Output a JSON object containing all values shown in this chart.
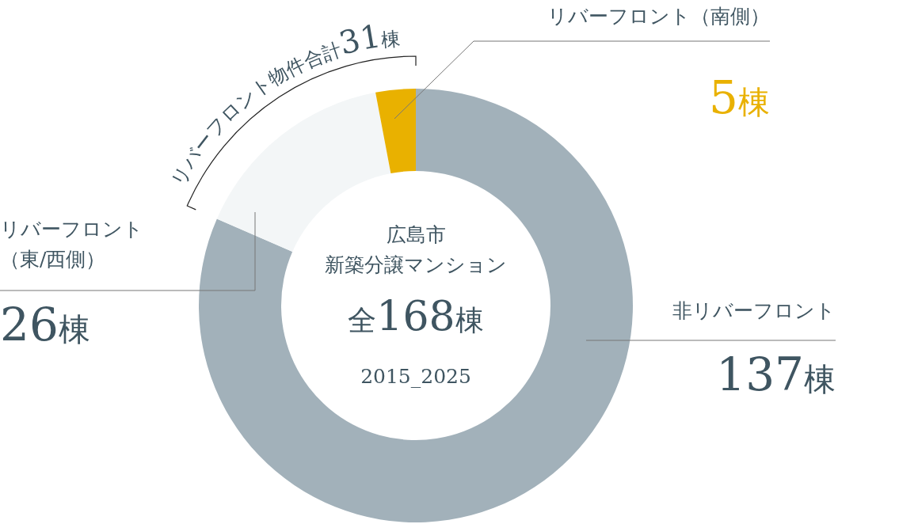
{
  "chart_data": {
    "type": "donut",
    "title": "広島市",
    "subtitle": "新築分譲マンション",
    "categories": [
      "非リバーフロント",
      "リバーフロント（東/西側）",
      "リバーフロント（南側）"
    ],
    "values": [
      137,
      26,
      5
    ],
    "colors": [
      "#a2b1ba",
      "#f3f6f7",
      "#e9b100"
    ],
    "value_labels": [
      "137棟",
      "26棟",
      "5棟"
    ],
    "annotations": [
      "全168棟",
      "2015_2025",
      "リバーフロント物件合計31棟"
    ]
  }
}
